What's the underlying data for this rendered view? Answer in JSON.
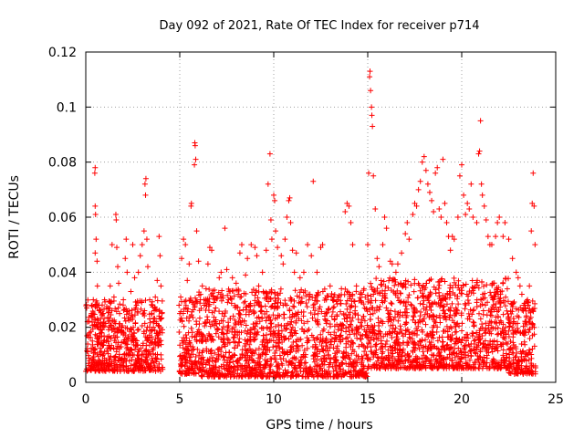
{
  "chart_data": {
    "type": "scatter",
    "title": "Day 092 of 2021, Rate Of TEC Index for receiver p714",
    "xlabel": "GPS time / hours",
    "ylabel": "ROTI / TECUs",
    "xlim": [
      0,
      25
    ],
    "ylim": [
      0,
      0.12
    ],
    "x_ticks": [
      "0",
      "5",
      "10",
      "15",
      "20",
      "25"
    ],
    "x_tick_values": [
      0,
      5,
      10,
      15,
      20,
      25
    ],
    "y_ticks": [
      "0",
      "0.02",
      "0.04",
      "0.06",
      "0.08",
      "0.1",
      "0.12"
    ],
    "y_tick_values": [
      0,
      0.02,
      0.04,
      0.06,
      0.08,
      0.1,
      0.12
    ],
    "grid": true,
    "marker": "+",
    "series_color": "#ff0000",
    "series": [
      {
        "name": "ROTI",
        "points": [
          [
            0.05,
            0.027
          ],
          [
            0.1,
            0.022
          ],
          [
            0.2,
            0.018
          ],
          [
            0.3,
            0.025
          ],
          [
            0.35,
            0.015
          ],
          [
            0.4,
            0.03
          ],
          [
            0.45,
            0.021
          ],
          [
            0.5,
            0.064
          ],
          [
            0.52,
            0.061
          ],
          [
            0.48,
            0.076
          ],
          [
            0.5,
            0.078
          ],
          [
            0.55,
            0.052
          ],
          [
            0.6,
            0.044
          ],
          [
            0.62,
            0.035
          ],
          [
            0.5,
            0.047
          ],
          [
            0.7,
            0.028
          ],
          [
            0.8,
            0.019
          ],
          [
            0.9,
            0.025
          ],
          [
            1.0,
            0.03
          ],
          [
            1.1,
            0.015
          ],
          [
            1.2,
            0.027
          ],
          [
            1.3,
            0.035
          ],
          [
            1.4,
            0.05
          ],
          [
            1.5,
            0.031
          ],
          [
            1.6,
            0.061
          ],
          [
            1.62,
            0.059
          ],
          [
            1.65,
            0.049
          ],
          [
            1.7,
            0.042
          ],
          [
            1.75,
            0.036
          ],
          [
            1.8,
            0.025
          ],
          [
            1.9,
            0.02
          ],
          [
            2.0,
            0.03
          ],
          [
            2.1,
            0.045
          ],
          [
            2.15,
            0.052
          ],
          [
            2.2,
            0.04
          ],
          [
            2.3,
            0.026
          ],
          [
            2.4,
            0.033
          ],
          [
            2.5,
            0.05
          ],
          [
            2.6,
            0.038
          ],
          [
            2.7,
            0.028
          ],
          [
            2.8,
            0.04
          ],
          [
            2.9,
            0.046
          ],
          [
            3.0,
            0.05
          ],
          [
            3.1,
            0.055
          ],
          [
            3.15,
            0.072
          ],
          [
            3.2,
            0.074
          ],
          [
            3.18,
            0.068
          ],
          [
            3.25,
            0.052
          ],
          [
            3.3,
            0.042
          ],
          [
            3.4,
            0.03
          ],
          [
            3.5,
            0.025
          ],
          [
            3.6,
            0.02
          ],
          [
            3.7,
            0.031
          ],
          [
            3.8,
            0.037
          ],
          [
            3.9,
            0.053
          ],
          [
            3.95,
            0.046
          ],
          [
            4.0,
            0.035
          ],
          [
            4.05,
            0.025
          ],
          [
            5.0,
            0.025
          ],
          [
            5.05,
            0.031
          ],
          [
            5.1,
            0.045
          ],
          [
            5.2,
            0.052
          ],
          [
            5.3,
            0.05
          ],
          [
            5.4,
            0.037
          ],
          [
            5.5,
            0.043
          ],
          [
            5.6,
            0.064
          ],
          [
            5.62,
            0.065
          ],
          [
            5.8,
            0.087
          ],
          [
            5.82,
            0.086
          ],
          [
            5.85,
            0.081
          ],
          [
            5.78,
            0.079
          ],
          [
            5.9,
            0.055
          ],
          [
            6.0,
            0.044
          ],
          [
            6.1,
            0.03
          ],
          [
            6.2,
            0.035
          ],
          [
            6.3,
            0.028
          ],
          [
            6.4,
            0.034
          ],
          [
            6.5,
            0.043
          ],
          [
            6.6,
            0.049
          ],
          [
            6.7,
            0.048
          ],
          [
            6.8,
            0.029
          ],
          [
            6.9,
            0.022
          ],
          [
            7.0,
            0.031
          ],
          [
            7.1,
            0.038
          ],
          [
            7.2,
            0.04
          ],
          [
            7.4,
            0.056
          ],
          [
            7.5,
            0.041
          ],
          [
            7.6,
            0.03
          ],
          [
            7.8,
            0.038
          ],
          [
            8.0,
            0.036
          ],
          [
            8.2,
            0.047
          ],
          [
            8.3,
            0.05
          ],
          [
            8.5,
            0.039
          ],
          [
            8.6,
            0.045
          ],
          [
            8.8,
            0.05
          ],
          [
            9.0,
            0.049
          ],
          [
            9.1,
            0.046
          ],
          [
            9.2,
            0.035
          ],
          [
            9.4,
            0.04
          ],
          [
            9.6,
            0.048
          ],
          [
            9.7,
            0.072
          ],
          [
            9.8,
            0.083
          ],
          [
            9.85,
            0.059
          ],
          [
            9.9,
            0.052
          ],
          [
            10.0,
            0.068
          ],
          [
            10.05,
            0.066
          ],
          [
            10.1,
            0.055
          ],
          [
            10.2,
            0.049
          ],
          [
            10.4,
            0.046
          ],
          [
            10.5,
            0.043
          ],
          [
            10.6,
            0.052
          ],
          [
            10.7,
            0.06
          ],
          [
            10.8,
            0.066
          ],
          [
            10.85,
            0.067
          ],
          [
            10.9,
            0.058
          ],
          [
            11.0,
            0.048
          ],
          [
            11.1,
            0.04
          ],
          [
            11.2,
            0.047
          ],
          [
            11.4,
            0.038
          ],
          [
            11.6,
            0.04
          ],
          [
            11.8,
            0.05
          ],
          [
            12.0,
            0.046
          ],
          [
            12.1,
            0.073
          ],
          [
            12.3,
            0.04
          ],
          [
            12.5,
            0.049
          ],
          [
            12.6,
            0.05
          ],
          [
            12.8,
            0.03
          ],
          [
            13.0,
            0.035
          ],
          [
            13.2,
            0.03
          ],
          [
            13.4,
            0.03
          ],
          [
            13.6,
            0.034
          ],
          [
            13.8,
            0.062
          ],
          [
            13.9,
            0.065
          ],
          [
            14.0,
            0.064
          ],
          [
            14.1,
            0.058
          ],
          [
            14.2,
            0.05
          ],
          [
            14.4,
            0.035
          ],
          [
            14.6,
            0.032
          ],
          [
            14.8,
            0.034
          ],
          [
            15.0,
            0.05
          ],
          [
            15.05,
            0.076
          ],
          [
            15.1,
            0.111
          ],
          [
            15.12,
            0.113
          ],
          [
            15.15,
            0.106
          ],
          [
            15.2,
            0.1
          ],
          [
            15.22,
            0.097
          ],
          [
            15.25,
            0.093
          ],
          [
            15.3,
            0.075
          ],
          [
            15.4,
            0.063
          ],
          [
            15.5,
            0.045
          ],
          [
            15.6,
            0.042
          ],
          [
            15.8,
            0.05
          ],
          [
            15.9,
            0.06
          ],
          [
            16.0,
            0.056
          ],
          [
            16.2,
            0.044
          ],
          [
            16.3,
            0.043
          ],
          [
            16.5,
            0.04
          ],
          [
            16.6,
            0.043
          ],
          [
            16.8,
            0.047
          ],
          [
            17.0,
            0.054
          ],
          [
            17.1,
            0.058
          ],
          [
            17.2,
            0.052
          ],
          [
            17.4,
            0.061
          ],
          [
            17.5,
            0.065
          ],
          [
            17.6,
            0.064
          ],
          [
            17.7,
            0.07
          ],
          [
            17.8,
            0.073
          ],
          [
            17.9,
            0.08
          ],
          [
            18.0,
            0.082
          ],
          [
            18.1,
            0.077
          ],
          [
            18.2,
            0.072
          ],
          [
            18.3,
            0.069
          ],
          [
            18.4,
            0.066
          ],
          [
            18.5,
            0.062
          ],
          [
            18.6,
            0.076
          ],
          [
            18.7,
            0.078
          ],
          [
            18.8,
            0.063
          ],
          [
            18.9,
            0.06
          ],
          [
            19.0,
            0.081
          ],
          [
            19.1,
            0.065
          ],
          [
            19.2,
            0.058
          ],
          [
            19.3,
            0.053
          ],
          [
            19.4,
            0.048
          ],
          [
            19.5,
            0.053
          ],
          [
            19.6,
            0.052
          ],
          [
            19.8,
            0.06
          ],
          [
            19.9,
            0.075
          ],
          [
            20.0,
            0.079
          ],
          [
            20.1,
            0.068
          ],
          [
            20.2,
            0.061
          ],
          [
            20.3,
            0.065
          ],
          [
            20.4,
            0.063
          ],
          [
            20.5,
            0.072
          ],
          [
            20.6,
            0.06
          ],
          [
            20.8,
            0.058
          ],
          [
            20.9,
            0.083
          ],
          [
            20.95,
            0.084
          ],
          [
            21.0,
            0.095
          ],
          [
            21.05,
            0.072
          ],
          [
            21.1,
            0.068
          ],
          [
            21.2,
            0.064
          ],
          [
            21.3,
            0.059
          ],
          [
            21.4,
            0.053
          ],
          [
            21.5,
            0.05
          ],
          [
            21.6,
            0.05
          ],
          [
            21.8,
            0.053
          ],
          [
            21.9,
            0.058
          ],
          [
            22.0,
            0.06
          ],
          [
            22.2,
            0.053
          ],
          [
            22.3,
            0.058
          ],
          [
            22.5,
            0.052
          ],
          [
            22.7,
            0.045
          ],
          [
            22.9,
            0.04
          ],
          [
            23.0,
            0.038
          ],
          [
            23.1,
            0.035
          ],
          [
            23.2,
            0.032
          ],
          [
            23.3,
            0.028
          ],
          [
            23.4,
            0.027
          ],
          [
            23.5,
            0.03
          ],
          [
            23.6,
            0.035
          ],
          [
            23.7,
            0.055
          ],
          [
            23.75,
            0.065
          ],
          [
            23.8,
            0.076
          ],
          [
            23.85,
            0.064
          ],
          [
            23.9,
            0.05
          ],
          [
            0.2,
            0.008
          ],
          [
            0.6,
            0.006
          ],
          [
            1.0,
            0.007
          ],
          [
            1.5,
            0.009
          ],
          [
            2.0,
            0.006
          ],
          [
            2.5,
            0.01
          ],
          [
            3.0,
            0.006
          ],
          [
            3.5,
            0.007
          ],
          [
            4.0,
            0.01
          ],
          [
            5.1,
            0.006
          ],
          [
            5.6,
            0.005
          ],
          [
            6.2,
            0.004
          ],
          [
            6.8,
            0.006
          ],
          [
            7.5,
            0.005
          ],
          [
            8.1,
            0.007
          ],
          [
            8.8,
            0.004
          ],
          [
            9.5,
            0.005
          ],
          [
            10.2,
            0.006
          ],
          [
            10.9,
            0.007
          ],
          [
            11.6,
            0.005
          ],
          [
            12.3,
            0.006
          ],
          [
            12.9,
            0.004
          ],
          [
            13.5,
            0.006
          ],
          [
            14.1,
            0.007
          ],
          [
            14.7,
            0.008
          ],
          [
            15.3,
            0.01
          ],
          [
            16.0,
            0.009
          ],
          [
            16.7,
            0.01
          ],
          [
            17.4,
            0.011
          ],
          [
            18.1,
            0.009
          ],
          [
            18.8,
            0.01
          ],
          [
            19.5,
            0.008
          ],
          [
            20.2,
            0.009
          ],
          [
            20.9,
            0.008
          ],
          [
            21.6,
            0.007
          ],
          [
            22.3,
            0.006
          ],
          [
            23.0,
            0.006
          ],
          [
            23.6,
            0.005
          ]
        ]
      }
    ],
    "dense_band": {
      "description": "dense cluster of ROTI samples between roughly 0.003 and 0.035 TECU/s across the observed hours",
      "segments": [
        {
          "x_start": 0.0,
          "x_end": 4.1,
          "y_min": 0.004,
          "y_max": 0.03
        },
        {
          "x_start": 4.95,
          "x_end": 5.95,
          "y_min": 0.003,
          "y_max": 0.031
        },
        {
          "x_start": 6.0,
          "x_end": 15.0,
          "y_min": 0.002,
          "y_max": 0.034
        },
        {
          "x_start": 15.0,
          "x_end": 22.5,
          "y_min": 0.005,
          "y_max": 0.038
        },
        {
          "x_start": 22.5,
          "x_end": 23.95,
          "y_min": 0.003,
          "y_max": 0.03
        }
      ]
    }
  }
}
